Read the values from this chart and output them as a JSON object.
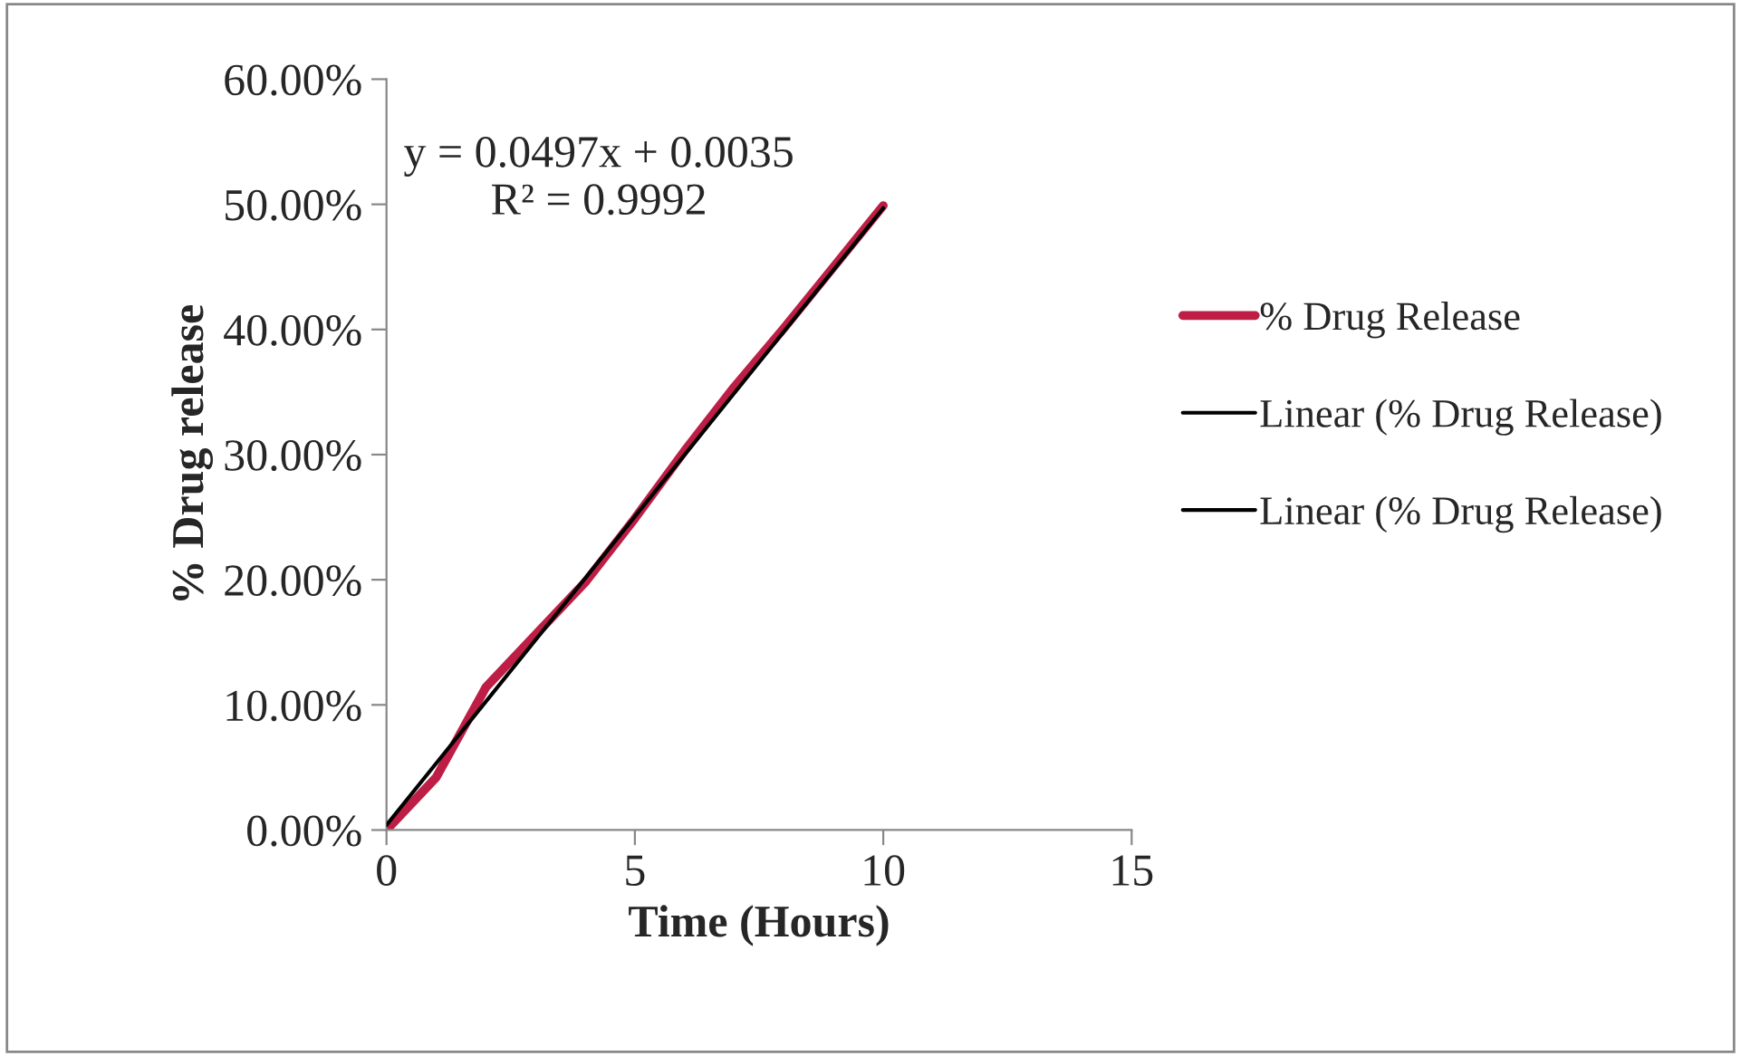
{
  "chart_data": {
    "type": "line",
    "xlabel": "Time (Hours)",
    "ylabel": "% Drug release",
    "x": [
      0,
      1,
      2,
      3,
      4,
      5,
      6,
      7,
      8,
      9,
      10
    ],
    "series": [
      {
        "name": "% Drug Release",
        "color": "#be1e45",
        "values": [
          0,
          4.2,
          11.4,
          15.6,
          19.8,
          24.9,
          30.3,
          35.4,
          40.1,
          45.0,
          49.9
        ]
      },
      {
        "name": "Linear (% Drug Release)",
        "color": "#000000",
        "x": [
          0,
          10
        ],
        "values": [
          0.4,
          49.7
        ]
      },
      {
        "name": "Linear (% Drug Release)",
        "color": "#000000",
        "values": [
          null,
          null,
          null,
          null,
          null,
          null,
          null,
          null,
          null,
          null,
          null
        ]
      }
    ],
    "annotations": [
      "y = 0.0497x + 0.0035\nR² = 0.9992"
    ],
    "xlim": [
      0,
      15
    ],
    "xticks": [
      0,
      5,
      10,
      15
    ],
    "ylim": [
      0,
      60
    ],
    "yticks": [
      {
        "value": 0,
        "label": "0.00%"
      },
      {
        "value": 10,
        "label": "10.00%"
      },
      {
        "value": 20,
        "label": "20.00%"
      },
      {
        "value": 30,
        "label": "30.00%"
      },
      {
        "value": 40,
        "label": "40.00%"
      },
      {
        "value": 50,
        "label": "50.00%"
      },
      {
        "value": 60,
        "label": "60.00%"
      }
    ],
    "grid": false,
    "legend": "right",
    "marker": "none",
    "line_style": "solid"
  }
}
